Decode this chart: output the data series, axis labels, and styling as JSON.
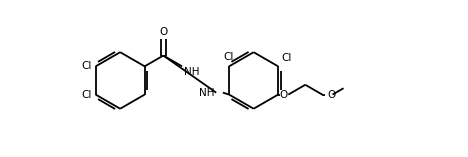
{
  "bg_color": "#ffffff",
  "line_color": "#000000",
  "line_width": 1.3,
  "font_size": 7.5,
  "figsize": [
    4.68,
    1.57
  ],
  "dpi": 100,
  "xlim": [
    -0.5,
    10.0
  ],
  "ylim": [
    -0.2,
    3.8
  ]
}
